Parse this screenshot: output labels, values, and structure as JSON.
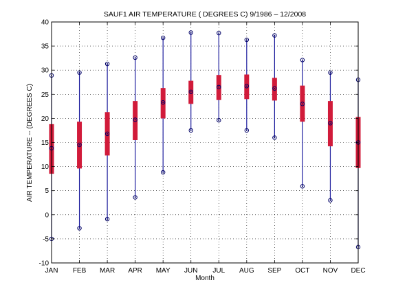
{
  "chart_data": {
    "type": "box",
    "title": "SAUF1  AIR TEMPERATURE ( DEGREES C) 9/1986 – 12/2008",
    "xlabel": "Month",
    "ylabel": "AIR TEMPERATURE -- (DEGREES C)",
    "ylim": [
      -10,
      40
    ],
    "yticks": [
      -10,
      -5,
      0,
      5,
      10,
      15,
      20,
      25,
      30,
      35,
      40
    ],
    "grid": true,
    "categories": [
      "JAN",
      "FEB",
      "MAR",
      "APR",
      "MAY",
      "JUN",
      "JUL",
      "AUG",
      "SEP",
      "OCT",
      "NOV",
      "DEC"
    ],
    "series": [
      {
        "min": [
          -5.0,
          -2.8,
          -0.9,
          3.6,
          8.8,
          17.5,
          19.6,
          17.5,
          16.0,
          5.9,
          3.0,
          -6.7
        ],
        "q1": [
          8.5,
          9.6,
          12.3,
          15.5,
          20.0,
          23.0,
          23.8,
          24.0,
          23.7,
          19.3,
          14.2,
          9.7
        ],
        "median": [
          13.8,
          14.5,
          16.8,
          19.7,
          23.3,
          25.5,
          26.5,
          26.7,
          26.2,
          23.0,
          19.0,
          15.0
        ],
        "q3": [
          18.8,
          19.3,
          21.3,
          23.6,
          26.3,
          27.8,
          29.0,
          29.1,
          28.4,
          26.8,
          23.6,
          20.3
        ],
        "max": [
          28.9,
          29.5,
          31.3,
          32.6,
          36.7,
          37.8,
          37.7,
          36.3,
          37.2,
          32.1,
          29.5,
          28.0
        ]
      }
    ],
    "colors": {
      "whisker": "#1a1a9c",
      "box": "#d11b3a",
      "marker": "#000066",
      "grid": "#000000"
    }
  }
}
